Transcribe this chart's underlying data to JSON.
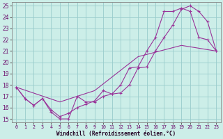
{
  "xlabel": "Windchill (Refroidissement éolien,°C)",
  "bg_color": "#cceee8",
  "grid_color": "#99cccc",
  "line_color": "#993399",
  "xlim": [
    -0.5,
    23.5
  ],
  "ylim": [
    14.7,
    25.3
  ],
  "xticks": [
    0,
    1,
    2,
    3,
    4,
    5,
    6,
    7,
    8,
    9,
    10,
    11,
    12,
    13,
    14,
    15,
    16,
    17,
    18,
    19,
    20,
    21,
    22,
    23
  ],
  "yticks": [
    15,
    16,
    17,
    18,
    19,
    20,
    21,
    22,
    23,
    24,
    25
  ],
  "line1_x": [
    0,
    1,
    2,
    3,
    4,
    5,
    6,
    7,
    8,
    9,
    10,
    11,
    12,
    13,
    14,
    15,
    16,
    17,
    18,
    19,
    20,
    21,
    22,
    23
  ],
  "line1_y": [
    17.8,
    16.8,
    16.2,
    16.8,
    15.6,
    15.0,
    15.0,
    17.0,
    16.5,
    16.5,
    17.0,
    17.2,
    17.3,
    18.0,
    19.5,
    19.6,
    21.0,
    22.2,
    23.3,
    24.7,
    25.0,
    24.5,
    23.6,
    21.0
  ],
  "line2_x": [
    0,
    1,
    2,
    3,
    4,
    5,
    6,
    7,
    8,
    9,
    10,
    11,
    12,
    13,
    14,
    15,
    16,
    17,
    18,
    19,
    20,
    21,
    22,
    23
  ],
  "line2_y": [
    17.8,
    16.8,
    16.2,
    16.8,
    15.8,
    15.2,
    15.5,
    16.0,
    16.3,
    16.6,
    17.5,
    17.2,
    18.0,
    19.5,
    19.6,
    21.0,
    22.2,
    24.5,
    24.5,
    24.8,
    24.5,
    22.2,
    22.0,
    21.0
  ],
  "line3_x": [
    0,
    5,
    9,
    14,
    19,
    23
  ],
  "line3_y": [
    17.8,
    16.5,
    17.5,
    20.5,
    21.5,
    21.0
  ]
}
